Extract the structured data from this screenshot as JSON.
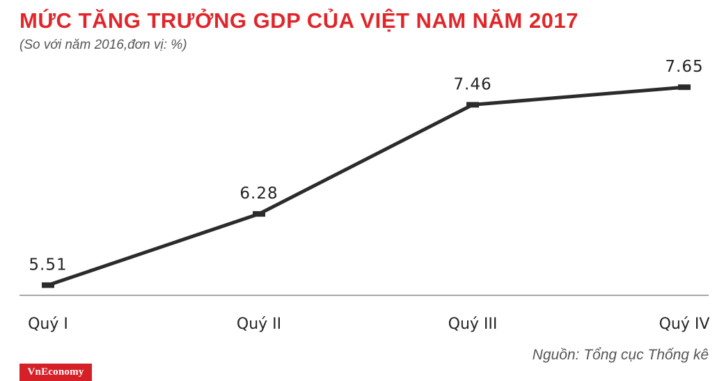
{
  "chart_data": {
    "type": "line",
    "title": "MỨC TĂNG TRƯỞNG GDP CỦA VIỆT NAM NĂM 2017",
    "subtitle": "(So với năm 2016,đơn vị: %)",
    "categories": [
      "Quý I",
      "Quý II",
      "Quý III",
      "Quý IV"
    ],
    "values": [
      5.51,
      6.28,
      7.46,
      7.65
    ],
    "value_labels": [
      "5.51",
      "6.28",
      "7.46",
      "7.65"
    ],
    "ylim": [
      5.4,
      7.9
    ],
    "grid": false,
    "legend": "none",
    "colors": {
      "title": "#e0262a",
      "line": "#2b2b2b",
      "axis": "#8a8a8a",
      "text": "#222222"
    }
  },
  "source": "Nguồn: Tổng cục Thống kê",
  "brand": "VnEconomy"
}
